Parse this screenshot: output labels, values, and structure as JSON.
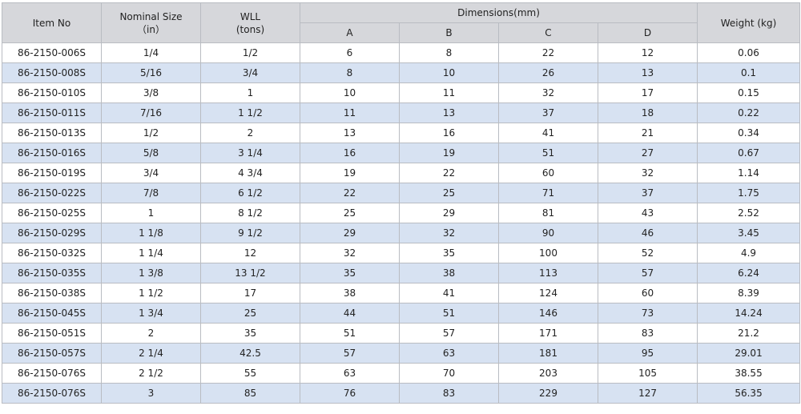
{
  "headers": {
    "item_no": "Item No",
    "nominal_size_line1": "Nominal Size",
    "nominal_size_line2": "（in）",
    "wll_line1": "WLL",
    "wll_line2": "(tons)",
    "dimensions": "Dimensions(mm)",
    "dim_a": "A",
    "dim_b": "B",
    "dim_c": "C",
    "dim_d": "D",
    "weight": "Weight (kg)"
  },
  "rows": [
    [
      "86-2150-006S",
      "1/4",
      "1/2",
      "6",
      "8",
      "22",
      "12",
      "0.06"
    ],
    [
      "86-2150-008S",
      "5/16",
      "3/4",
      "8",
      "10",
      "26",
      "13",
      "0.1"
    ],
    [
      "86-2150-010S",
      "3/8",
      "1",
      "10",
      "11",
      "32",
      "17",
      "0.15"
    ],
    [
      "86-2150-011S",
      "7/16",
      "1 1/2",
      "11",
      "13",
      "37",
      "18",
      "0.22"
    ],
    [
      "86-2150-013S",
      "1/2",
      "2",
      "13",
      "16",
      "41",
      "21",
      "0.34"
    ],
    [
      "86-2150-016S",
      "5/8",
      "3 1/4",
      "16",
      "19",
      "51",
      "27",
      "0.67"
    ],
    [
      "86-2150-019S",
      "3/4",
      "4 3/4",
      "19",
      "22",
      "60",
      "32",
      "1.14"
    ],
    [
      "86-2150-022S",
      "7/8",
      "6 1/2",
      "22",
      "25",
      "71",
      "37",
      "1.75"
    ],
    [
      "86-2150-025S",
      "1",
      "8 1/2",
      "25",
      "29",
      "81",
      "43",
      "2.52"
    ],
    [
      "86-2150-029S",
      "1 1/8",
      "9 1/2",
      "29",
      "32",
      "90",
      "46",
      "3.45"
    ],
    [
      "86-2150-032S",
      "1 1/4",
      "12",
      "32",
      "35",
      "100",
      "52",
      "4.9"
    ],
    [
      "86-2150-035S",
      "1 3/8",
      "13 1/2",
      "35",
      "38",
      "113",
      "57",
      "6.24"
    ],
    [
      "86-2150-038S",
      "1 1/2",
      "17",
      "38",
      "41",
      "124",
      "60",
      "8.39"
    ],
    [
      "86-2150-045S",
      "1 3/4",
      "25",
      "44",
      "51",
      "146",
      "73",
      "14.24"
    ],
    [
      "86-2150-051S",
      "2",
      "35",
      "51",
      "57",
      "171",
      "83",
      "21.2"
    ],
    [
      "86-2150-057S",
      "2 1/4",
      "42.5",
      "57",
      "63",
      "181",
      "95",
      "29.01"
    ],
    [
      "86-2150-076S",
      "2 1/2",
      "55",
      "63",
      "70",
      "203",
      "105",
      "38.55"
    ],
    [
      "86-2150-076S",
      "3",
      "85",
      "76",
      "83",
      "229",
      "127",
      "56.35"
    ]
  ]
}
